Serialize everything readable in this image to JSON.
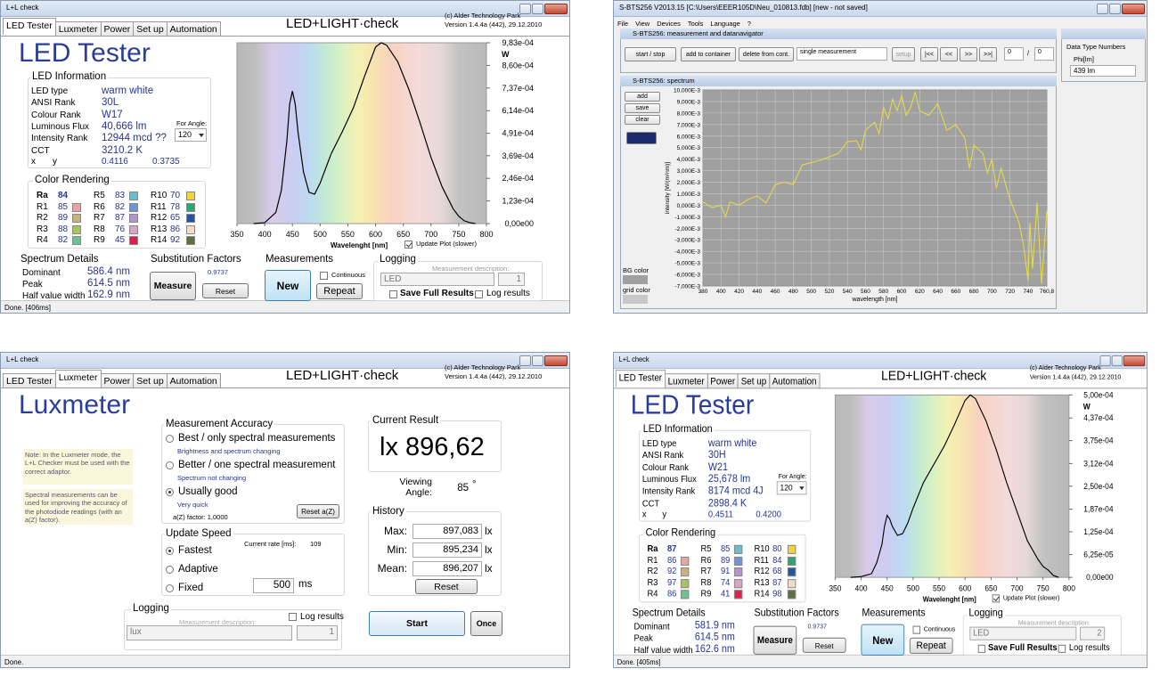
{
  "led_window": {
    "title": "L+L check",
    "tabs": [
      "LED Tester",
      "Luxmeter",
      "Power",
      "Set up",
      "Automation"
    ],
    "brand": "LED+LIGHT·check",
    "copyright": "(c) Alder Technology Park",
    "version": "Version 1.4.4a (442), 29.12.2010",
    "heading": "LED Tester",
    "info": {
      "title": "LED Information",
      "rows": [
        {
          "label": "LED type",
          "value": "warm white"
        },
        {
          "label": "ANSI Rank",
          "value": "30L"
        },
        {
          "label": "Colour Rank",
          "value": "W17"
        },
        {
          "label": "Luminous Flux",
          "value": "40,666 lm"
        },
        {
          "label": "Intensity Rank",
          "value": "12944 mcd ??"
        },
        {
          "label": "CCT",
          "value": "3210.2 K"
        }
      ],
      "angle_label": "For Angle:",
      "angle": "120",
      "x_label": "x",
      "y_label": "y",
      "x": "0.4116",
      "y": "0.3735"
    },
    "color_rendering": {
      "title": "Color Rendering",
      "items": [
        {
          "label": "Ra",
          "value": 84
        },
        {
          "label": "R1",
          "value": 85,
          "color": "#e8a4a4"
        },
        {
          "label": "R2",
          "value": 89,
          "color": "#c9b27e"
        },
        {
          "label": "R3",
          "value": 88,
          "color": "#a8c45c"
        },
        {
          "label": "R4",
          "value": 82,
          "color": "#6cc294"
        },
        {
          "label": "R5",
          "value": 83,
          "color": "#6cbcd0"
        },
        {
          "label": "R6",
          "value": 82,
          "color": "#7294d4"
        },
        {
          "label": "R7",
          "value": 87,
          "color": "#b494cc"
        },
        {
          "label": "R8",
          "value": 76,
          "color": "#d8a4c4"
        },
        {
          "label": "R9",
          "value": 45,
          "color": "#e0204a"
        },
        {
          "label": "R10",
          "value": 70,
          "color": "#f2d43c"
        },
        {
          "label": "R11",
          "value": 78,
          "color": "#2ea46e"
        },
        {
          "label": "R12",
          "value": 65,
          "color": "#2454a4"
        },
        {
          "label": "R13",
          "value": 86,
          "color": "#f4dcc8"
        },
        {
          "label": "R14",
          "value": 92,
          "color": "#5e7040"
        }
      ]
    },
    "chart": {
      "type": "line",
      "unit": "W",
      "xlabel": "Wavelenght [nm]",
      "update_plot": "Update Plot (slower)",
      "color": "#000000",
      "xlim": [
        350,
        800
      ],
      "xticks": [
        350,
        400,
        450,
        500,
        550,
        600,
        650,
        700,
        750,
        800
      ],
      "ylim": [
        0,
        0.000983
      ],
      "yticks": [
        {
          "value": 0.000983,
          "label": "9,83e-04"
        },
        {
          "value": 0.00086,
          "label": "8,60e-04"
        },
        {
          "value": 0.000737,
          "label": "7,37e-04"
        },
        {
          "value": 0.000614,
          "label": "6,14e-04"
        },
        {
          "value": 0.000491,
          "label": "4,91e-04"
        },
        {
          "value": 0.000369,
          "label": "3,69e-04"
        },
        {
          "value": 0.000246,
          "label": "2,46e-04"
        },
        {
          "value": 0.000123,
          "label": "1,23e-04"
        },
        {
          "value": 0,
          "label": "0,00e00"
        }
      ],
      "x": [
        380,
        400,
        420,
        430,
        440,
        445,
        450,
        455,
        460,
        470,
        480,
        490,
        500,
        520,
        540,
        560,
        580,
        600,
        610,
        620,
        640,
        660,
        680,
        700,
        720,
        740,
        750,
        760,
        770,
        780
      ],
      "values": [
        0,
        5e-06,
        6e-05,
        0.00018,
        0.00045,
        0.00065,
        0.00072,
        0.00065,
        0.0005,
        0.00028,
        0.00017,
        0.00016,
        0.00022,
        0.00038,
        0.0005,
        0.00063,
        0.0008,
        0.00096,
        0.000983,
        0.00097,
        0.00088,
        0.00073,
        0.00055,
        0.00036,
        0.0002,
        8e-05,
        4e-05,
        1.5e-05,
        5e-06,
        0
      ]
    },
    "spectrum_details": {
      "title": "Spectrum Details",
      "rows": [
        {
          "label": "Dominant",
          "value": "586.4 nm"
        },
        {
          "label": "Peak",
          "value": "614.5 nm"
        },
        {
          "label": "Half value width",
          "value": "162.9 nm"
        }
      ]
    },
    "substitution": {
      "title": "Substitution Factors",
      "value": "0.9737",
      "measure": "Measure",
      "reset": "Reset"
    },
    "measurements": {
      "title": "Measurements",
      "continuous": "Continuous",
      "new": "New",
      "repeat": "Repeat"
    },
    "logging": {
      "title": "Logging",
      "description_label": "Measurement description:",
      "description": "LED",
      "count": "1",
      "save_full": "Save Full Results",
      "log_results": "Log results"
    },
    "status": "Done. [406ms]"
  },
  "bts_window": {
    "title": "S-BTS256 V2013.15 [C:\\Users\\EEER105D\\Neu_010813.fdb] [new - not saved]",
    "menu": [
      "File",
      "View",
      "Devices",
      "Tools",
      "Language",
      "?"
    ],
    "navigator": {
      "title": "S-BTS256: measurement and datanavigator",
      "buttons": [
        "start / stop",
        "add to container",
        "delete from cont."
      ],
      "mode": "single measurement",
      "setup": "setup",
      "nav": [
        "|<<",
        "<<",
        ">>",
        ">>|"
      ],
      "index": "0",
      "separator": "/",
      "total": "0"
    },
    "data_panel": {
      "data_type": "Data Type",
      "numbers": "Numbers",
      "quantity": "Phi[lm]",
      "value": "439  lm"
    },
    "spectrum": {
      "title": "S-BTS256: spectrum",
      "buttons": [
        "add",
        "save",
        "clear"
      ],
      "bg_color": "BG color",
      "grid_color": "grid color",
      "chart": {
        "type": "line",
        "ylabel": "intensity [W/(m²nm)]",
        "xlabel": "wavelength [nm]",
        "color": "#e8e040",
        "xlim": [
          380,
          760.8
        ],
        "xticks": [
          380,
          400,
          420,
          440,
          460,
          480,
          500,
          520,
          540,
          560,
          580,
          600,
          620,
          640,
          660,
          680,
          700,
          720,
          740,
          {
            "value": 760.8,
            "label": "760,8"
          }
        ],
        "ylim": [
          -0.007,
          0.01
        ],
        "yticks": [
          {
            "value": 0.01,
            "label": "10,000E-3"
          },
          {
            "value": 0.009,
            "label": "9,000E-3"
          },
          {
            "value": 0.008,
            "label": "8,000E-3"
          },
          {
            "value": 0.007,
            "label": "7,000E-3"
          },
          {
            "value": 0.006,
            "label": "6,000E-3"
          },
          {
            "value": 0.005,
            "label": "5,000E-3"
          },
          {
            "value": 0.004,
            "label": "4,000E-3"
          },
          {
            "value": 0.003,
            "label": "3,000E-3"
          },
          {
            "value": 0.002,
            "label": "2,000E-3"
          },
          {
            "value": 0.001,
            "label": "1,000E-3"
          },
          {
            "value": 0,
            "label": "0,000E-3"
          },
          {
            "value": -0.001,
            "label": "-1,000E-3"
          },
          {
            "value": -0.002,
            "label": "-2,000E-3"
          },
          {
            "value": -0.003,
            "label": "-3,000E-3"
          },
          {
            "value": -0.004,
            "label": "-4,000E-3"
          },
          {
            "value": -0.005,
            "label": "-5,000E-3"
          },
          {
            "value": -0.006,
            "label": "-6,000E-3"
          },
          {
            "value": -0.007,
            "label": "-7,000E-3"
          }
        ],
        "x": [
          380,
          390,
          400,
          405,
          410,
          420,
          430,
          440,
          450,
          460,
          470,
          480,
          490,
          500,
          510,
          520,
          530,
          540,
          550,
          555,
          560,
          570,
          575,
          580,
          585,
          590,
          595,
          600,
          605,
          610,
          615,
          620,
          630,
          640,
          650,
          660,
          670,
          675,
          680,
          690,
          695,
          700,
          705,
          710,
          720,
          730,
          735,
          740,
          742,
          745,
          750,
          755,
          760.8
        ],
        "values": [
          0.0003,
          -0.0002,
          0,
          -0.001,
          0.0003,
          0,
          0.0005,
          0.0008,
          0.0002,
          0.0018,
          0.002,
          0.0018,
          0.0035,
          0.0037,
          0.0039,
          0.0042,
          0.0045,
          0.0055,
          0.0056,
          0.0048,
          0.0065,
          0.0072,
          0.0062,
          0.0085,
          0.0075,
          0.0092,
          0.0082,
          0.0095,
          0.0078,
          0.0085,
          0.0098,
          0.0082,
          0.0078,
          0.0088,
          0.0065,
          0.007,
          0.0058,
          0.0032,
          0.0052,
          0.0045,
          0.0028,
          0.004,
          0.0015,
          0.0032,
          0.0005,
          -0.0015,
          -0.0035,
          -0.0065,
          -0.0015,
          -0.0055,
          0.0002,
          -0.0068,
          -0.0005
        ]
      }
    }
  },
  "lux_window": {
    "title": "L+L check",
    "tabs": [
      "LED Tester",
      "Luxmeter",
      "Power",
      "Set up",
      "Automation"
    ],
    "brand": "LED+LIGHT·check",
    "copyright": "(c) Alder Technology Park",
    "version": "Version 1.4.4a (442), 29.12.2010",
    "heading": "Luxmeter",
    "notes": [
      "Note: In the Luxmeter mode, the L+L Checker must be used with the correct adaptor.",
      "Spectral measurements can be used for improving the accuracy of the photodiode readings (with an a(Z) factor)."
    ],
    "accuracy": {
      "title": "Measurement Accuracy",
      "options": [
        {
          "label": "Best / only spectral measurements",
          "hint": "Brightness and spectrum changing"
        },
        {
          "label": "Better / one spectral measurement",
          "hint": "Spectrum not changing"
        },
        {
          "label": "Usually good",
          "hint": "Very quick"
        }
      ],
      "az_factor": "a(Z) factor: 1,0000",
      "reset": "Reset a(Z)"
    },
    "speed": {
      "title": "Update Speed",
      "rate_label": "Current rate [ms]:",
      "rate": "109",
      "options": [
        "Fastest",
        "Adaptive",
        "Fixed"
      ],
      "fixed_value": "500",
      "unit": "ms"
    },
    "result": {
      "title": "Current Result",
      "value": "lx 896,62",
      "angle_label": "Viewing Angle:",
      "angle": "85",
      "degree": "°"
    },
    "history": {
      "title": "History",
      "rows": [
        {
          "label": "Max:",
          "value": "897,083",
          "unit": "lx"
        },
        {
          "label": "Min:",
          "value": "895,234",
          "unit": "lx"
        },
        {
          "label": "Mean:",
          "value": "896,207",
          "unit": "lx"
        }
      ],
      "reset": "Reset"
    },
    "logging": {
      "title": "Logging",
      "log_results": "Log results",
      "description_label": "Measurement description:",
      "description": "lux",
      "count": "1"
    },
    "start": "Start",
    "once": "Once",
    "status": "Done."
  },
  "led_window_2": {
    "title": "L+L check",
    "tabs": [
      "LED Tester",
      "Luxmeter",
      "Power",
      "Set up",
      "Automation"
    ],
    "brand": "LED+LIGHT·check",
    "copyright": "(c) Alder Technology Park",
    "version": "Version 1.4.4a (442), 29.12.2010",
    "heading": "LED Tester",
    "info": {
      "title": "LED Information",
      "rows": [
        {
          "label": "LED type",
          "value": "warm white"
        },
        {
          "label": "ANSI Rank",
          "value": "30H"
        },
        {
          "label": "Colour Rank",
          "value": "W21"
        },
        {
          "label": "Luminous Flux",
          "value": "25,678 lm"
        },
        {
          "label": "Intensity Rank",
          "value": "8174 mcd 4J"
        },
        {
          "label": "CCT",
          "value": "2898.4 K"
        }
      ],
      "angle_label": "For Angle:",
      "angle": "120",
      "x_label": "x",
      "y_label": "y",
      "x": "0.4511",
      "y": "0.4200"
    },
    "color_rendering": {
      "title": "Color Rendering",
      "items": [
        {
          "label": "Ra",
          "value": 87
        },
        {
          "label": "R1",
          "value": 86,
          "color": "#e8a4a4"
        },
        {
          "label": "R2",
          "value": 92,
          "color": "#c9b27e"
        },
        {
          "label": "R3",
          "value": 97,
          "color": "#a8c45c"
        },
        {
          "label": "R4",
          "value": 86,
          "color": "#6cc294"
        },
        {
          "label": "R5",
          "value": 85,
          "color": "#6cbcd0"
        },
        {
          "label": "R6",
          "value": 89,
          "color": "#7294d4"
        },
        {
          "label": "R7",
          "value": 91,
          "color": "#b494cc"
        },
        {
          "label": "R8",
          "value": 74,
          "color": "#d8a4c4"
        },
        {
          "label": "R9",
          "value": 41,
          "color": "#e0204a"
        },
        {
          "label": "R10",
          "value": 80,
          "color": "#f2d43c"
        },
        {
          "label": "R11",
          "value": 84,
          "color": "#2ea46e"
        },
        {
          "label": "R12",
          "value": 68,
          "color": "#2454a4"
        },
        {
          "label": "R13",
          "value": 87,
          "color": "#f4dcc8"
        },
        {
          "label": "R14",
          "value": 98,
          "color": "#5e7040"
        }
      ]
    },
    "chart": {
      "type": "line",
      "unit": "W",
      "xlabel": "Wavelenght [nm]",
      "update_plot": "Update Plot (slower)",
      "color": "#000000",
      "xlim": [
        350,
        800
      ],
      "xticks": [
        350,
        400,
        450,
        500,
        550,
        600,
        650,
        700,
        750,
        800
      ],
      "ylim": [
        0,
        0.0005
      ],
      "yticks": [
        {
          "value": 0.0005,
          "label": "5,00e-04"
        },
        {
          "value": 0.000437,
          "label": "4,37e-04"
        },
        {
          "value": 0.000375,
          "label": "3,75e-04"
        },
        {
          "value": 0.000312,
          "label": "3,12e-04"
        },
        {
          "value": 0.00025,
          "label": "2,50e-04"
        },
        {
          "value": 0.000187,
          "label": "1,87e-04"
        },
        {
          "value": 0.000125,
          "label": "1,25e-04"
        },
        {
          "value": 6.25e-05,
          "label": "6,25e-05"
        },
        {
          "value": 0,
          "label": "0,00e00"
        }
      ],
      "x": [
        380,
        400,
        420,
        430,
        440,
        445,
        450,
        455,
        460,
        470,
        480,
        490,
        500,
        520,
        540,
        560,
        580,
        600,
        610,
        620,
        640,
        660,
        680,
        700,
        720,
        740,
        750,
        760,
        770,
        780
      ],
      "values": [
        0,
        2e-06,
        1e-05,
        4e-05,
        9e-05,
        0.00014,
        0.00017,
        0.00016,
        0.00014,
        0.000115,
        0.00012,
        0.00015,
        0.00019,
        0.00026,
        0.00031,
        0.00036,
        0.00042,
        0.000485,
        0.0005,
        0.00049,
        0.00043,
        0.00035,
        0.00026,
        0.00018,
        0.0001,
        5e-05,
        3e-05,
        2e-05,
        5e-06,
        0
      ]
    },
    "spectrum_details": {
      "title": "Spectrum Details",
      "rows": [
        {
          "label": "Dominant",
          "value": "581.9 nm"
        },
        {
          "label": "Peak",
          "value": "614.5 nm"
        },
        {
          "label": "Half value width",
          "value": "162.6 nm"
        }
      ]
    },
    "substitution": {
      "title": "Substitution Factors",
      "value": "0.9737",
      "measure": "Measure",
      "reset": "Reset"
    },
    "measurements": {
      "title": "Measurements",
      "continuous": "Continuous",
      "new": "New",
      "repeat": "Repeat"
    },
    "logging": {
      "title": "Logging",
      "description_label": "Measurement description:",
      "description": "LED",
      "count": "2",
      "save_full": "Save Full Results",
      "log_results": "Log results"
    },
    "status": "Done. [405ms]"
  }
}
